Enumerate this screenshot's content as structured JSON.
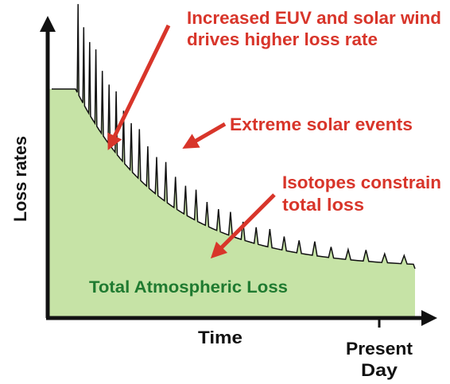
{
  "axes": {
    "y_label": "Loss rates",
    "x_label": "Time",
    "x_marker_lines": [
      "Present",
      "Day"
    ]
  },
  "area_label": "Total Atmospheric Loss",
  "annotations": [
    {
      "lines": [
        "Increased EUV and solar wind",
        "drives higher loss rate"
      ]
    },
    {
      "lines": [
        "Extreme solar events"
      ]
    },
    {
      "lines": [
        "Isotopes constrain",
        "total loss"
      ]
    }
  ]
}
